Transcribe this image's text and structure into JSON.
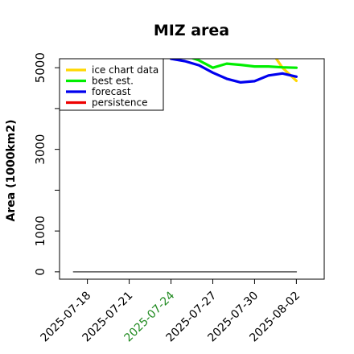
{
  "chart_data": {
    "type": "line",
    "title": "MIZ area",
    "ylabel": "Area (1000km2)",
    "xlabel": "",
    "x_range": [
      "2025-07-16",
      "2025-08-04"
    ],
    "ylim": [
      -180,
      5220
    ],
    "yticks": [
      0,
      1000,
      3000,
      5000
    ],
    "yticks_minor": [
      2000,
      4000
    ],
    "xticks": [
      {
        "date": "2025-07-18",
        "label": "2025-07-18",
        "color": "#000000"
      },
      {
        "date": "2025-07-21",
        "label": "2025-07-21",
        "color": "#000000"
      },
      {
        "date": "2025-07-24",
        "label": "2025-07-24",
        "color": "#228B22"
      },
      {
        "date": "2025-07-27",
        "label": "2025-07-27",
        "color": "#000000"
      },
      {
        "date": "2025-07-30",
        "label": "2025-07-30",
        "color": "#000000"
      },
      {
        "date": "2025-08-02",
        "label": "2025-08-02",
        "color": "#000000"
      }
    ],
    "legend_position": "top-left",
    "series": [
      {
        "name": "ice chart data",
        "color": "#FFD700",
        "points": [
          [
            "2025-07-31",
            5500
          ],
          [
            "2025-08-01",
            5000
          ],
          [
            "2025-08-02",
            4680
          ]
        ]
      },
      {
        "name": "best est.",
        "color": "#00EE00",
        "points": [
          [
            "2025-07-24",
            5400
          ],
          [
            "2025-07-25",
            5300
          ],
          [
            "2025-07-26",
            5180
          ],
          [
            "2025-07-27",
            5000
          ],
          [
            "2025-07-28",
            5100
          ],
          [
            "2025-07-29",
            5070
          ],
          [
            "2025-07-30",
            5030
          ],
          [
            "2025-07-31",
            5030
          ],
          [
            "2025-08-01",
            5010
          ],
          [
            "2025-08-02",
            5000
          ]
        ]
      },
      {
        "name": "forecast",
        "color": "#0000EE",
        "points": [
          [
            "2025-07-24",
            5220
          ],
          [
            "2025-07-25",
            5160
          ],
          [
            "2025-07-26",
            5060
          ],
          [
            "2025-07-27",
            4880
          ],
          [
            "2025-07-28",
            4730
          ],
          [
            "2025-07-29",
            4640
          ],
          [
            "2025-07-30",
            4670
          ],
          [
            "2025-07-31",
            4810
          ],
          [
            "2025-08-01",
            4860
          ],
          [
            "2025-08-02",
            4780
          ]
        ]
      },
      {
        "name": "persistence",
        "color": "#EE0000",
        "points": []
      },
      {
        "name": "",
        "color": "#555555",
        "legend": false,
        "points": [
          [
            "2025-07-17",
            0
          ],
          [
            "2025-08-02",
            0
          ]
        ]
      }
    ]
  }
}
